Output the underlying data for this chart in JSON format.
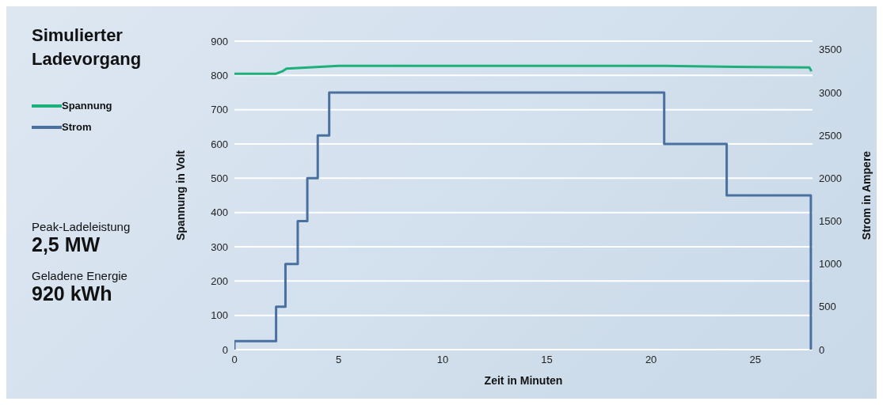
{
  "chart_data": {
    "type": "line",
    "title": "Simulierter Ladevorgang",
    "xlabel": "Zeit in Minuten",
    "ylabel": "Spannung in Volt",
    "y2label": "Strom in Ampere",
    "annotations": [
      "Peak-Ladeleistung",
      "2,5 MW",
      "Geladene Energie",
      "920 kWh"
    ],
    "series": [
      {
        "name": "Spannung",
        "color": "#1db07a",
        "x": [
          0,
          2.0,
          2.3,
          2.5,
          5,
          20.6,
          24,
          27.6,
          27.7
        ],
        "values": [
          805,
          805,
          812,
          820,
          828,
          828,
          825,
          823,
          812
        ]
      },
      {
        "name": "Strom",
        "color": "#4a70a0",
        "axis": "y2",
        "x": [
          0,
          0,
          2,
          2,
          2.45,
          2.45,
          3.04,
          3.04,
          3.5,
          3.5,
          4,
          4,
          4.55,
          4.55,
          20.63,
          20.63,
          23.63,
          23.63,
          27.67,
          27.67
        ],
        "values": [
          0,
          100,
          100,
          500,
          500,
          1000,
          1000,
          1500,
          1500,
          2000,
          2000,
          2500,
          2500,
          3000,
          3000,
          2400,
          2400,
          1800,
          1800,
          0
        ]
      }
    ],
    "xlim": [
      0,
      27.75
    ],
    "xticks": [
      0,
      5,
      10,
      15,
      20,
      25
    ],
    "ylim": [
      0,
      900
    ],
    "yticks": [
      0,
      100,
      200,
      300,
      400,
      500,
      600,
      700,
      800,
      900
    ],
    "y2lim": [
      0,
      3600
    ],
    "y2ticks": [
      0,
      500,
      1000,
      1500,
      2000,
      2500,
      3000,
      3500
    ],
    "grid": "y",
    "legend": "left"
  }
}
